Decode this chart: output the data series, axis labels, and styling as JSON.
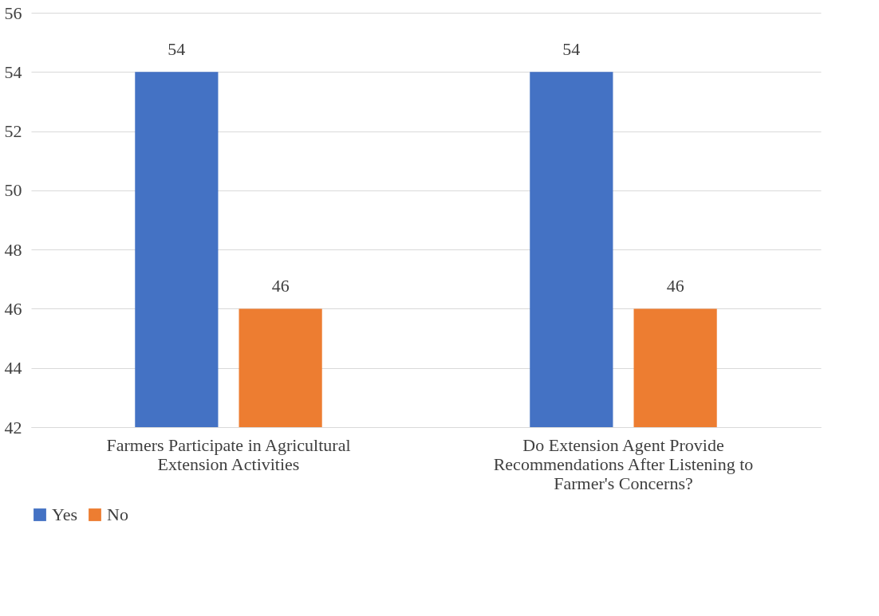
{
  "chart_data": {
    "type": "bar",
    "categories": [
      "Farmers Participate in Agricultural Extension Activities",
      "Do Extension Agent Provide Recommendations After Listening to Farmer's Concerns?"
    ],
    "series": [
      {
        "name": "Yes",
        "color": "#4472c4",
        "values": [
          54,
          54
        ]
      },
      {
        "name": "No",
        "color": "#ed7d31",
        "values": [
          46,
          46
        ]
      }
    ],
    "ylim": [
      42,
      56
    ],
    "yticks": [
      42,
      44,
      46,
      48,
      50,
      52,
      54,
      56
    ],
    "grid": "y",
    "legend": "bottom",
    "data_labels": true
  }
}
